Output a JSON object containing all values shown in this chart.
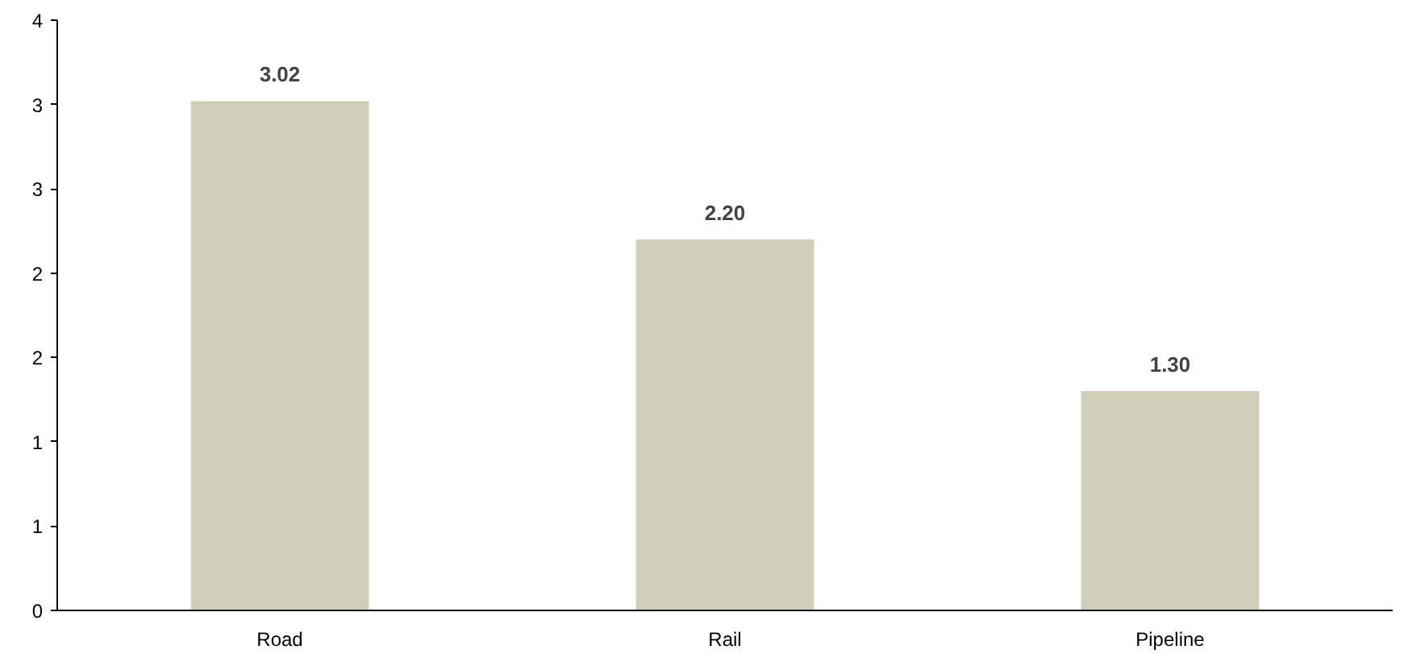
{
  "chart_data": {
    "type": "bar",
    "categories": [
      "Road",
      "Rail",
      "Pipeline"
    ],
    "values": [
      3.02,
      2.2,
      1.3
    ],
    "value_labels": [
      "3.02",
      "2.20",
      "1.30"
    ],
    "color": "#d0cdb8",
    "ylim": [
      0,
      3.5
    ],
    "yticks": [
      0,
      {
        "value": 0.5,
        "label": "1"
      },
      1,
      {
        "value": 1.5,
        "label": "2"
      },
      2,
      {
        "value": 2.5,
        "label": "3"
      },
      3,
      {
        "value": 3.5,
        "label": "4"
      }
    ]
  }
}
